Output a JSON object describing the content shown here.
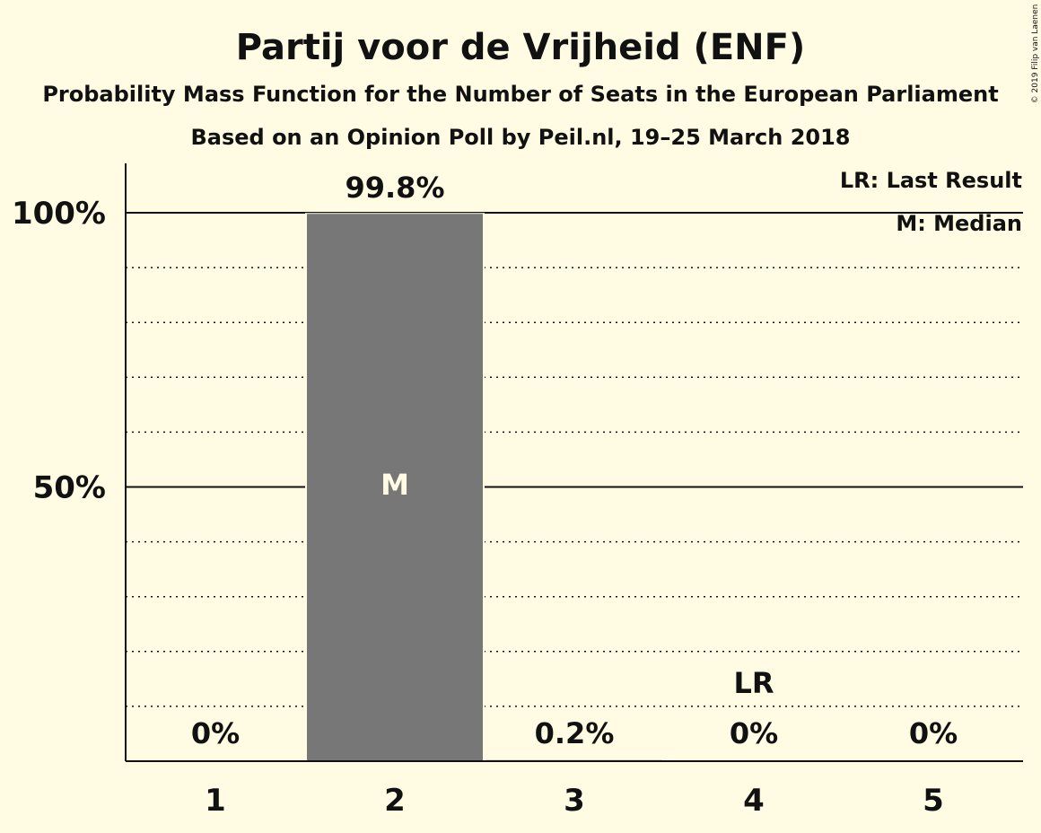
{
  "copyright": "© 2019 Filip van Laenen",
  "chart_data": {
    "type": "bar",
    "title": "Partij voor de Vrijheid (ENF)",
    "subtitle": "Probability Mass Function for the Number of Seats in the European Parliament",
    "subtitle2": "Based on an Opinion Poll by Peil.nl, 19–25 March 2018",
    "categories": [
      "1",
      "2",
      "3",
      "4",
      "5"
    ],
    "values": [
      0,
      99.8,
      0.2,
      0,
      0
    ],
    "value_labels": [
      "0%",
      "99.8%",
      "0.2%",
      "0%",
      "0%"
    ],
    "ylim": [
      0,
      100
    ],
    "yticks": [
      {
        "value": 50,
        "label": "50%"
      },
      {
        "value": 100,
        "label": "100%"
      }
    ],
    "minor_grid_step": 10,
    "grid": true,
    "legend_position": "top-right",
    "legend": [
      "LR: Last Result",
      "M: Median"
    ],
    "median_category": "2",
    "median_marker": "M",
    "last_result_category": "4",
    "last_result_marker": "LR",
    "colors": {
      "background": "#FFFCE3",
      "bar": "#777777",
      "text": "#111111",
      "median_text": "#FFFCE3"
    }
  }
}
